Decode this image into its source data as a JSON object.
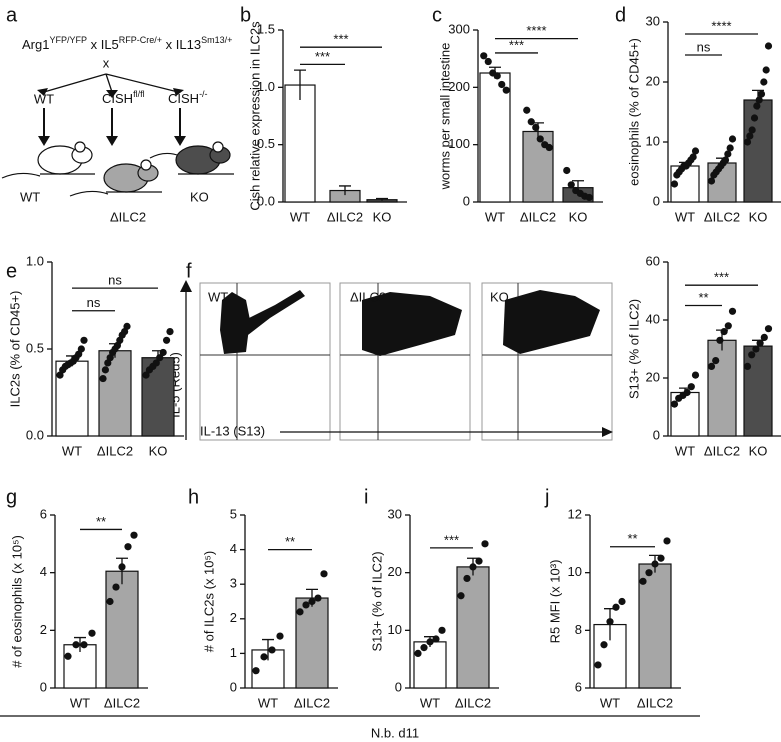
{
  "diagram": {
    "label": "a",
    "genotype": [
      {
        "text": "Arg1",
        "sup": "YFP/YFP"
      },
      {
        "text": " x IL5",
        "sup": "RFP-Cre/+"
      },
      {
        "text": " x IL13",
        "sup": "Sm13/+"
      }
    ],
    "cross": "x",
    "groups": [
      {
        "text": "WT"
      },
      {
        "text": "CISH",
        "sup": "fl/fl"
      },
      {
        "text": "CISH",
        "sup": "-/-"
      }
    ],
    "mice": [
      "WT",
      "ΔILC2",
      "KO"
    ]
  },
  "flow": {
    "label": "f",
    "plots": [
      "WT",
      "ΔILC2",
      "KO"
    ],
    "y_label": "IL-5 (Red5)",
    "x_label": "IL-13 (S13)"
  },
  "footer": "N.b. d11",
  "chart_data": [
    {
      "type": "bar",
      "label": "b",
      "ylabel": "Cish relative expression in ILC2s",
      "categories": [
        "WT",
        "ΔILC2",
        "KO"
      ],
      "colors": [
        "#ffffff",
        "#a6a6a6",
        "#4d4d4d"
      ],
      "values": [
        1.02,
        0.1,
        0.02
      ],
      "errors": [
        0.13,
        0.04,
        0.01
      ],
      "ylim": [
        0,
        1.5
      ],
      "yticks": [
        {
          "value": 0,
          "label": "0.0"
        },
        0.5,
        {
          "value": 1,
          "label": "1.0"
        },
        1.5
      ],
      "comparisons": [
        {
          "label": "***",
          "categories": [
            "WT",
            "ΔILC2"
          ],
          "y": 1.2
        },
        {
          "label": "***",
          "categories": [
            "WT",
            "KO"
          ],
          "y": 1.35
        }
      ]
    },
    {
      "type": "bar",
      "label": "c",
      "ylabel": "worms per small intestine",
      "categories": [
        "WT",
        "ΔILC2",
        "KO"
      ],
      "colors": [
        "#ffffff",
        "#a6a6a6",
        "#4d4d4d"
      ],
      "values": [
        225,
        123,
        25
      ],
      "errors": [
        10,
        15,
        12
      ],
      "points": [
        [
          255,
          245,
          225,
          220,
          205,
          195
        ],
        [
          160,
          140,
          130,
          110,
          100,
          95
        ],
        [
          55,
          30,
          20,
          15,
          10,
          8
        ]
      ],
      "ylim": [
        0,
        300
      ],
      "yticks": [
        0,
        100,
        200,
        300
      ],
      "comparisons": [
        {
          "label": "***",
          "categories": [
            "WT",
            "ΔILC2"
          ],
          "y": 260
        },
        {
          "label": "****",
          "categories": [
            "WT",
            "KO"
          ],
          "y": 285
        }
      ]
    },
    {
      "type": "bar",
      "label": "d",
      "ylabel": "eosinophils (% of CD45+)",
      "categories": [
        "WT",
        "ΔILC2",
        "KO"
      ],
      "colors": [
        "#ffffff",
        "#a6a6a6",
        "#4d4d4d"
      ],
      "values": [
        6,
        6.5,
        17
      ],
      "errors": [
        0.6,
        0.8,
        1.6
      ],
      "points": [
        [
          3,
          4.5,
          5,
          5.5,
          6,
          6,
          6.5,
          7,
          7.5,
          8.5
        ],
        [
          3.5,
          4.5,
          5,
          5.5,
          6,
          6.5,
          7,
          8,
          9,
          10.5
        ],
        [
          10,
          11,
          12,
          14,
          16,
          17,
          18,
          20,
          22,
          26
        ]
      ],
      "ylim": [
        0,
        30
      ],
      "yticks": [
        0,
        10,
        20,
        30
      ],
      "comparisons": [
        {
          "label": "ns",
          "categories": [
            "WT",
            "ΔILC2"
          ],
          "y": 24.5
        },
        {
          "label": "****",
          "categories": [
            "WT",
            "KO"
          ],
          "y": 28
        }
      ]
    },
    {
      "type": "bar",
      "label": "e",
      "ylabel": "ILC2s (% of CD45+)",
      "categories": [
        "WT",
        "ΔILC2",
        "KO"
      ],
      "colors": [
        "#ffffff",
        "#a6a6a6",
        "#4d4d4d"
      ],
      "values": [
        0.43,
        0.49,
        0.45
      ],
      "errors": [
        0.03,
        0.04,
        0.04
      ],
      "points": [
        [
          0.35,
          0.38,
          0.4,
          0.41,
          0.42,
          0.43,
          0.45,
          0.47,
          0.5,
          0.55
        ],
        [
          0.33,
          0.38,
          0.42,
          0.45,
          0.48,
          0.5,
          0.52,
          0.55,
          0.58,
          0.6,
          0.63
        ],
        [
          0.35,
          0.38,
          0.4,
          0.42,
          0.45,
          0.48,
          0.55,
          0.6
        ]
      ],
      "ylim": [
        0,
        1
      ],
      "yticks": [
        {
          "value": 0,
          "label": "0.0"
        },
        0.5,
        {
          "value": 1,
          "label": "1.0"
        }
      ],
      "comparisons": [
        {
          "label": "ns",
          "categories": [
            "WT",
            "ΔILC2"
          ],
          "y": 0.72
        },
        {
          "label": "ns",
          "categories": [
            "WT",
            "KO"
          ],
          "y": 0.85
        }
      ]
    },
    {
      "type": "bar",
      "ylabel": "S13+ (% of ILC2)",
      "categories": [
        "WT",
        "ΔILC2",
        "KO"
      ],
      "colors": [
        "#ffffff",
        "#a6a6a6",
        "#4d4d4d"
      ],
      "values": [
        15,
        33,
        31
      ],
      "errors": [
        1.5,
        3.5,
        2
      ],
      "points": [
        [
          11,
          13,
          14,
          15,
          17,
          21
        ],
        [
          24,
          26,
          33,
          36,
          38,
          43
        ],
        [
          24,
          28,
          30,
          32,
          34,
          37
        ]
      ],
      "ylim": [
        0,
        60
      ],
      "yticks": [
        0,
        20,
        40,
        60
      ],
      "comparisons": [
        {
          "label": "**",
          "categories": [
            "WT",
            "ΔILC2"
          ],
          "y": 45
        },
        {
          "label": "***",
          "categories": [
            "WT",
            "KO"
          ],
          "y": 52
        }
      ]
    },
    {
      "type": "bar",
      "label": "g",
      "ylabel": "# of eosinophils (x 10⁵)",
      "categories": [
        "WT",
        "ΔILC2"
      ],
      "colors": [
        "#ffffff",
        "#a6a6a6"
      ],
      "values": [
        1.5,
        4.05
      ],
      "errors": [
        0.25,
        0.45
      ],
      "points": [
        [
          1.1,
          1.5,
          1.5,
          1.9
        ],
        [
          3.0,
          3.5,
          4.2,
          4.9,
          5.3
        ]
      ],
      "ylim": [
        0,
        6
      ],
      "yticks": [
        0,
        2,
        4,
        6
      ],
      "comparisons": [
        {
          "label": "**",
          "categories": [
            "WT",
            "ΔILC2"
          ],
          "y": 5.5
        }
      ]
    },
    {
      "type": "bar",
      "label": "h",
      "ylabel": "# of ILC2s (x 10⁵)",
      "categories": [
        "WT",
        "ΔILC2"
      ],
      "colors": [
        "#ffffff",
        "#a6a6a6"
      ],
      "values": [
        1.1,
        2.6
      ],
      "errors": [
        0.3,
        0.25
      ],
      "points": [
        [
          0.5,
          0.9,
          1.1,
          1.5
        ],
        [
          2.2,
          2.4,
          2.5,
          2.6,
          3.3
        ]
      ],
      "ylim": [
        0,
        5
      ],
      "yticks": [
        0,
        1,
        2,
        3,
        4,
        5
      ],
      "comparisons": [
        {
          "label": "**",
          "categories": [
            "WT",
            "ΔILC2"
          ],
          "y": 4
        }
      ]
    },
    {
      "type": "bar",
      "label": "i",
      "ylabel": "S13+ (% of ILC2)",
      "categories": [
        "WT",
        "ΔILC2"
      ],
      "colors": [
        "#ffffff",
        "#a6a6a6"
      ],
      "values": [
        8,
        21
      ],
      "errors": [
        0.9,
        1.5
      ],
      "points": [
        [
          6,
          7,
          8,
          8.5,
          10
        ],
        [
          16,
          19,
          21,
          22,
          25
        ]
      ],
      "ylim": [
        0,
        30
      ],
      "yticks": [
        0,
        10,
        20,
        30
      ],
      "comparisons": [
        {
          "label": "***",
          "categories": [
            "WT",
            "ΔILC2"
          ],
          "y": 24.3
        }
      ]
    },
    {
      "type": "bar",
      "label": "j",
      "ylabel": "R5 MFI (x 10³)",
      "categories": [
        "WT",
        "ΔILC2"
      ],
      "colors": [
        "#ffffff",
        "#a6a6a6"
      ],
      "values": [
        8.2,
        10.3
      ],
      "errors": [
        0.55,
        0.3
      ],
      "points": [
        [
          6.8,
          7.5,
          8.3,
          8.8,
          9.0
        ],
        [
          9.7,
          10,
          10.3,
          10.5,
          11.1
        ]
      ],
      "ylim": [
        6,
        12
      ],
      "yticks": [
        6,
        8,
        10,
        12
      ],
      "comparisons": [
        {
          "label": "**",
          "categories": [
            "WT",
            "ΔILC2"
          ],
          "y": 10.9
        }
      ]
    }
  ]
}
